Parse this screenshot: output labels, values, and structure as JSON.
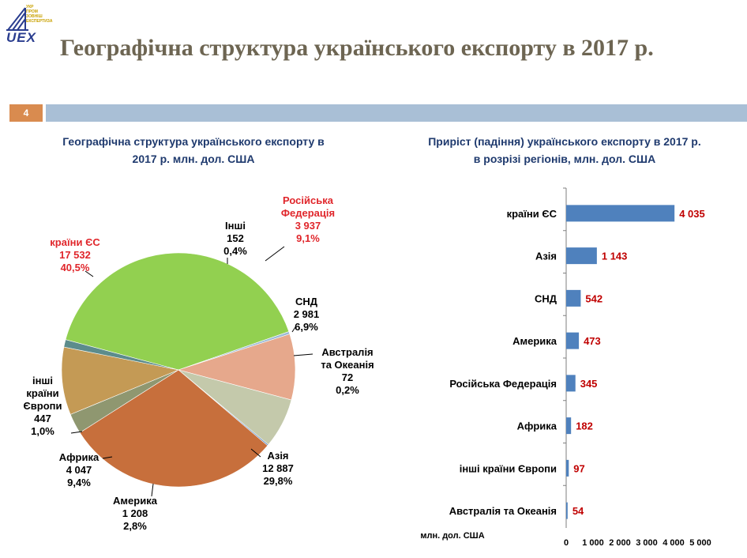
{
  "header": {
    "logo_text": "UEX",
    "logo_sub": [
      "УКР",
      "ПРОМ",
      "ЗОВНІШ",
      "ЕКСПЕРТИЗА"
    ],
    "title": "Географічна структура українського експорту в 2017 р.",
    "slide_number": "4"
  },
  "chart_data": [
    {
      "type": "pie",
      "title_lines": [
        "Географічна структура українського експорту в",
        "2017 р. млн. дол. США"
      ],
      "slices": [
        {
          "name": "країни ЄС",
          "value": 17532,
          "value_label": "17 532",
          "percent_label": "40,5%",
          "color": "#92d050"
        },
        {
          "name": "Інші",
          "value": 152,
          "value_label": "152",
          "percent_label": "0,4%",
          "color": "#9bbad6"
        },
        {
          "name": "Російська Федерація",
          "value": 3937,
          "value_label": "3 937",
          "percent_label": "9,1%",
          "color": "#e6a88c"
        },
        {
          "name": "СНД",
          "value": 2981,
          "value_label": "2 981",
          "percent_label": "6,9%",
          "color": "#c4c9ab"
        },
        {
          "name": "Австралія та Океанія",
          "value": 72,
          "value_label": "72",
          "percent_label": "0,2%",
          "color": "#4f81bd"
        },
        {
          "name": "Азія",
          "value": 12887,
          "value_label": "12 887",
          "percent_label": "29,8%",
          "color": "#c76f3c"
        },
        {
          "name": "Америка",
          "value": 1208,
          "value_label": "1 208",
          "percent_label": "2,8%",
          "color": "#8f9770"
        },
        {
          "name": "Африка",
          "value": 4047,
          "value_label": "4 047",
          "percent_label": "9,4%",
          "color": "#c49a55"
        },
        {
          "name": "інші країни Європи",
          "value": 447,
          "value_label": "447",
          "percent_label": "1,0%",
          "color": "#5c8c8c"
        }
      ],
      "highlight_color": "#e0262b"
    },
    {
      "type": "bar",
      "orientation": "horizontal",
      "title_lines": [
        "Приріст (падіння) українського експорту в 2017 р.",
        "в розрізі регіонів, млн. дол. США"
      ],
      "categories": [
        "країни ЄС",
        "Азія",
        "СНД",
        "Америка",
        "Російська Федерація",
        "Африка",
        "інші країни Європи",
        "Австралія та Океанія"
      ],
      "values": [
        4035,
        1143,
        542,
        473,
        345,
        182,
        97,
        54
      ],
      "value_labels": [
        "4 035",
        "1 143",
        "542",
        "473",
        "345",
        "182",
        "97",
        "54"
      ],
      "xlim": [
        0,
        5000
      ],
      "xticks": [
        "0",
        "1 000",
        "2 000",
        "3 000",
        "4 000",
        "5 000"
      ],
      "xlabel": "млн. дол. США",
      "bar_color": "#4f81bd",
      "label_color": "#c00000"
    }
  ]
}
